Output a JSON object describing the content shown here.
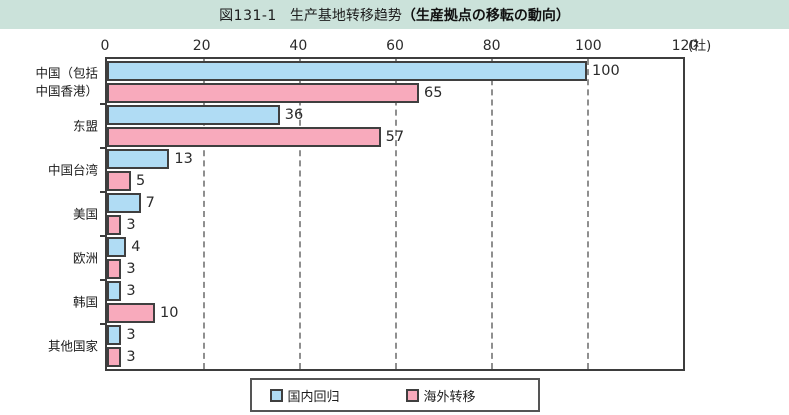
{
  "banner": {
    "title_prefix": "図131-1",
    "title_main": "生产基地转移趋势",
    "title_paren": "（生産拠点の移転の動向）",
    "bg_color": "#cbe2da"
  },
  "chart_data": {
    "type": "bar",
    "orientation": "horizontal",
    "title": "生产基地转移趋势（生産拠点の移転の動向）",
    "categories": [
      "中国（包括\n中国香港）",
      "东盟",
      "中国台湾",
      "美国",
      "欧洲",
      "韩国",
      "其他国家"
    ],
    "series": [
      {
        "name": "国内回归",
        "color": "#b0dcf4",
        "values": [
          100,
          36,
          13,
          7,
          4,
          3,
          3
        ]
      },
      {
        "name": "海外转移",
        "color": "#f8aabc",
        "values": [
          65,
          57,
          5,
          3,
          3,
          10,
          3
        ]
      }
    ],
    "xlim": [
      0,
      120
    ],
    "x_ticks": [
      "0",
      "20",
      "40",
      "60",
      "80",
      "100",
      "120"
    ],
    "x_unit": "(社)",
    "grid": "vertical-dashed",
    "gridline_color": "#8f8f8f",
    "bar_border_color": "#3f3f3f",
    "value_labels": true,
    "legend_position": "bottom"
  },
  "legend": {
    "items": [
      {
        "label": "国内回归",
        "color": "#b0dcf4"
      },
      {
        "label": "海外转移",
        "color": "#f8aabc"
      }
    ]
  }
}
